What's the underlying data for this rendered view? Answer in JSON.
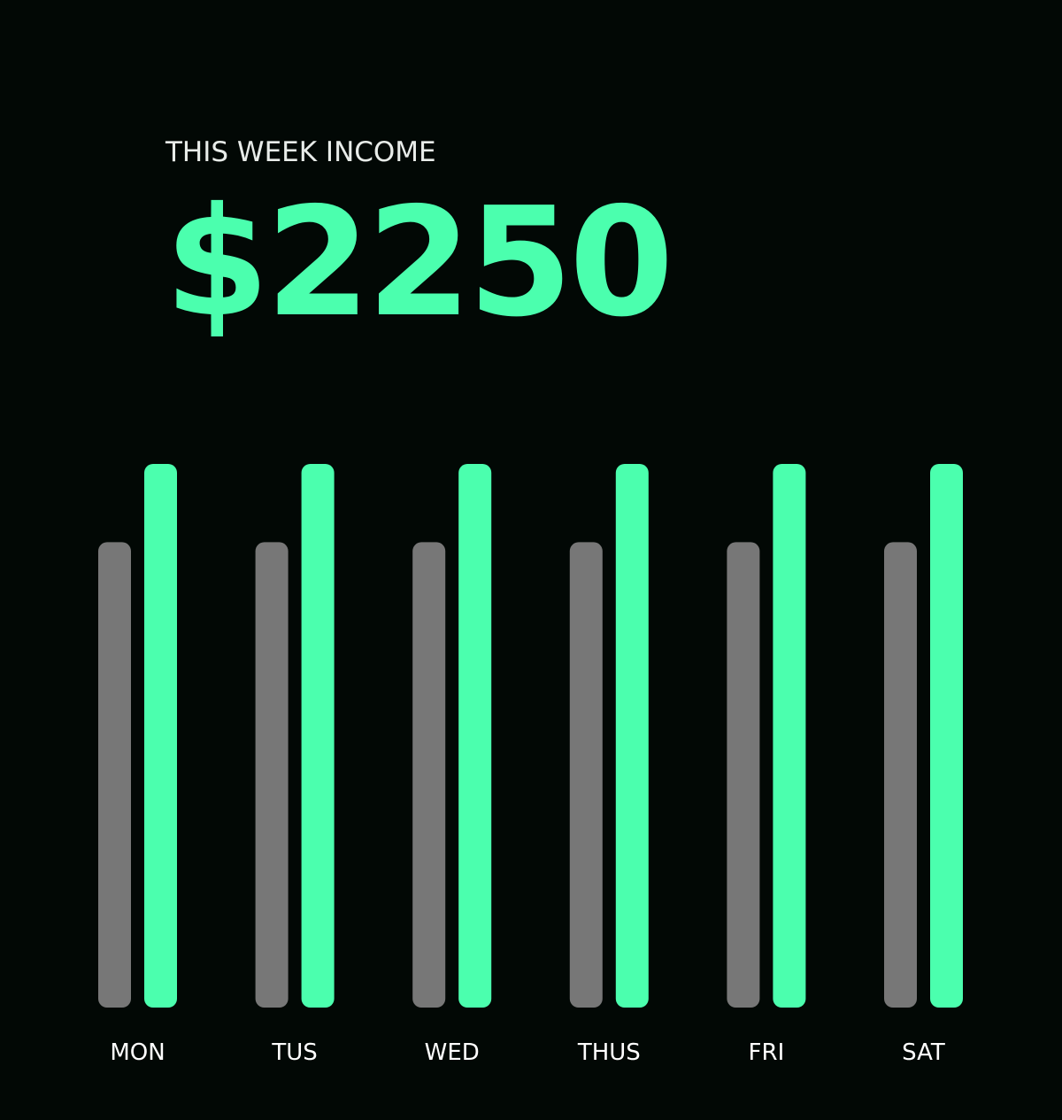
{
  "header": {
    "title": "THIS WEEK INCOME",
    "amount": "$2250"
  },
  "colors": {
    "background": "#020805",
    "accent": "#4BFFAE",
    "secondary": "#777777",
    "text": "#ffffff"
  },
  "chart_data": {
    "type": "bar",
    "categories": [
      "MON",
      "TUS",
      "WED",
      "THUS",
      "FRI",
      "SAT"
    ],
    "series": [
      {
        "values": [
          0.856,
          0.856,
          0.856,
          0.856,
          0.856,
          0.856
        ],
        "color": "#777777"
      },
      {
        "values": [
          1,
          1,
          1,
          1,
          1,
          1
        ],
        "color": "#4BFFAE"
      }
    ],
    "title": "",
    "xlabel": "",
    "ylabel": "",
    "ylim": [
      0,
      1
    ],
    "grid": false,
    "legend": "none"
  }
}
